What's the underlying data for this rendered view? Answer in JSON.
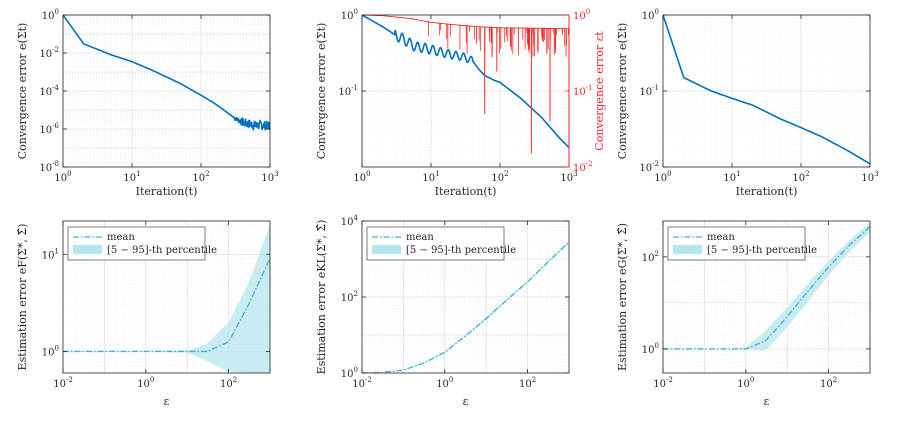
{
  "chart_data": [
    {
      "id": "p1",
      "type": "line",
      "xscale": "log",
      "yscale": "log",
      "xlabel": "Iteration(t)",
      "ylabel": "Convergence error e(Σt)",
      "xlim": [
        1,
        1000
      ],
      "ylim": [
        1e-08,
        1
      ],
      "xticks": [
        1,
        10,
        100,
        1000
      ],
      "xtick_labels": [
        "10^0",
        "10^1",
        "10^2",
        "10^3"
      ],
      "yticks": [
        1e-08,
        1e-06,
        0.0001,
        0.01,
        1
      ],
      "ytick_labels": [
        "10^-8",
        "10^-6",
        "10^-4",
        "10^-2",
        "10^0"
      ],
      "grid": true,
      "series": [
        {
          "name": "convergence",
          "color": "#0072BD",
          "style": "solid",
          "x": [
            1,
            2,
            5,
            10,
            20,
            50,
            100,
            150,
            200,
            300,
            400,
            600,
            1000
          ],
          "y": [
            1,
            0.03,
            0.008,
            0.0035,
            0.0012,
            0.00025,
            6e-05,
            2.5e-05,
            1.2e-05,
            4e-06,
            2.2e-06,
            1.6e-06,
            1.5e-06
          ],
          "noise": {
            "from": 300,
            "amp": 0.25,
            "seed": 7
          }
        }
      ]
    },
    {
      "id": "p2",
      "type": "line",
      "xscale": "log",
      "yscale": "log",
      "xlabel": "Iteration(t)",
      "ylabel": "Convergence error e(Σt)",
      "xlim": [
        1,
        1000
      ],
      "ylim": [
        0.01,
        1
      ],
      "xticks": [
        1,
        10,
        100,
        1000
      ],
      "xtick_labels": [
        "10^0",
        "10^1",
        "10^2",
        "10^3"
      ],
      "yticks": [
        0.1,
        1
      ],
      "ytick_labels": [
        "10^-1",
        "10^0"
      ],
      "ylabel_right": "Convergence error εt",
      "ylim_right": [
        0.01,
        1
      ],
      "yticks_right": [
        0.01,
        0.1,
        1
      ],
      "ytick_labels_right": [
        "10^-2",
        "10^-1",
        "10^0"
      ],
      "right_color": "#FF2222",
      "grid": true,
      "series": [
        {
          "name": "convergence",
          "color": "#0072BD",
          "style": "solid",
          "x": [
            1,
            2,
            3,
            4,
            5,
            6,
            8,
            10,
            15,
            20,
            30,
            40,
            50,
            60,
            80,
            100,
            200,
            400,
            700,
            1000
          ],
          "y": [
            1,
            0.7,
            0.55,
            0.48,
            0.42,
            0.38,
            0.37,
            0.35,
            0.32,
            0.3,
            0.28,
            0.25,
            0.19,
            0.16,
            0.14,
            0.13,
            0.08,
            0.045,
            0.025,
            0.018
          ],
          "osc": {
            "from": 3,
            "to": 40,
            "amp": 0.08,
            "freq": 9
          }
        },
        {
          "name": "error_eps",
          "color": "#FF2222",
          "style": "solid",
          "axis": "right",
          "x": [
            1,
            2,
            5,
            10,
            20,
            50,
            100,
            300,
            1000
          ],
          "y": [
            1,
            0.98,
            0.9,
            0.8,
            0.75,
            0.7,
            0.68,
            0.67,
            0.66
          ],
          "spikes": {
            "from": 5,
            "count": 70,
            "seed": 11,
            "deep": [
              [
                60,
                0.05
              ],
              [
                285,
                0.015
              ],
              [
                530,
                0.04
              ],
              [
                90,
                0.18
              ]
            ]
          }
        }
      ]
    },
    {
      "id": "p3",
      "type": "line",
      "xscale": "log",
      "yscale": "log",
      "xlabel": "Iteration(t)",
      "ylabel": "Convergence error e(Σt)",
      "xlim": [
        1,
        1000
      ],
      "ylim": [
        0.01,
        1
      ],
      "xticks": [
        1,
        10,
        100,
        1000
      ],
      "xtick_labels": [
        "10^0",
        "10^1",
        "10^2",
        "10^3"
      ],
      "yticks": [
        0.01,
        0.1,
        1
      ],
      "ytick_labels": [
        "10^-2",
        "10^-1",
        "10^0"
      ],
      "grid": true,
      "series": [
        {
          "name": "convergence",
          "color": "#0072BD",
          "style": "solid",
          "x": [
            1,
            2,
            5,
            10,
            20,
            50,
            100,
            200,
            500,
            1000
          ],
          "y": [
            1,
            0.15,
            0.1,
            0.08,
            0.065,
            0.043,
            0.033,
            0.025,
            0.016,
            0.011
          ]
        }
      ]
    },
    {
      "id": "p4",
      "type": "area",
      "xscale": "log",
      "yscale": "log",
      "xlabel": "ε",
      "ylabel": "Estimation error eF(Σ*, Σ̂)",
      "xlim": [
        0.01,
        1000
      ],
      "ylim": [
        0.6,
        22
      ],
      "xticks": [
        0.01,
        1,
        100
      ],
      "xtick_labels": [
        "10^-2",
        "10^0",
        "10^2"
      ],
      "yticks": [
        1,
        10
      ],
      "ytick_labels": [
        "10^0",
        "10^1"
      ],
      "grid": true,
      "legend": "top-left",
      "legend_entries": [
        "mean",
        "[5 − 95]-th percentile"
      ],
      "x": [
        0.01,
        0.1,
        1,
        10,
        30,
        100,
        300,
        1000
      ],
      "mean": [
        1,
        1,
        1,
        1,
        1,
        1.25,
        3,
        9
      ],
      "band_lower": [
        1,
        1,
        1,
        0.97,
        0.8,
        0.62,
        0.6,
        0.6
      ],
      "band_upper": [
        1,
        1,
        1,
        1.02,
        1.2,
        2,
        5,
        20
      ]
    },
    {
      "id": "p5",
      "type": "area",
      "xscale": "log",
      "yscale": "log",
      "xlabel": "ε",
      "ylabel": "Estimation error eKL(Σ*, Σ̂)",
      "xlim": [
        0.01,
        1000
      ],
      "ylim": [
        1,
        10000
      ],
      "xticks": [
        0.01,
        1,
        100
      ],
      "xtick_labels": [
        "10^-2",
        "10^0",
        "10^2"
      ],
      "yticks": [
        1,
        100,
        10000
      ],
      "ytick_labels": [
        "10^0",
        "10^2",
        "10^4"
      ],
      "grid": true,
      "legend": "top-left",
      "legend_entries": [
        "mean",
        "[5 − 95]-th percentile"
      ],
      "x": [
        0.01,
        0.03,
        0.1,
        0.3,
        1,
        3,
        10,
        30,
        100,
        300,
        1000
      ],
      "mean": [
        1,
        1.03,
        1.2,
        1.8,
        3.5,
        9,
        27,
        80,
        250,
        800,
        2800
      ],
      "band_lower": [
        1,
        1.02,
        1.18,
        1.75,
        3.3,
        8.5,
        25,
        75,
        235,
        760,
        2600
      ],
      "band_upper": [
        1,
        1.04,
        1.22,
        1.85,
        3.7,
        9.5,
        29,
        86,
        265,
        850,
        3000
      ]
    },
    {
      "id": "p6",
      "type": "area",
      "xscale": "log",
      "yscale": "log",
      "xlabel": "ε",
      "ylabel": "Estimation error eG(Σ*, Σ̂)",
      "xlim": [
        0.01,
        1000
      ],
      "ylim": [
        0.3,
        600
      ],
      "xticks": [
        0.01,
        1,
        100
      ],
      "xtick_labels": [
        "10^-2",
        "10^0",
        "10^2"
      ],
      "yticks": [
        1,
        100
      ],
      "ytick_labels": [
        "10^0",
        "10^2"
      ],
      "grid": true,
      "legend": "top-left",
      "legend_entries": [
        "mean",
        "[5 − 95]-th percentile"
      ],
      "x": [
        0.01,
        0.1,
        0.5,
        1,
        3,
        10,
        30,
        100,
        300,
        1000
      ],
      "mean": [
        1,
        1,
        1,
        1,
        1.5,
        5,
        17,
        60,
        170,
        450
      ],
      "band_lower": [
        1,
        1,
        1,
        1,
        0.9,
        3,
        10,
        40,
        120,
        350
      ],
      "band_upper": [
        1,
        1,
        1,
        1.1,
        2.5,
        8,
        25,
        80,
        220,
        550
      ]
    }
  ]
}
